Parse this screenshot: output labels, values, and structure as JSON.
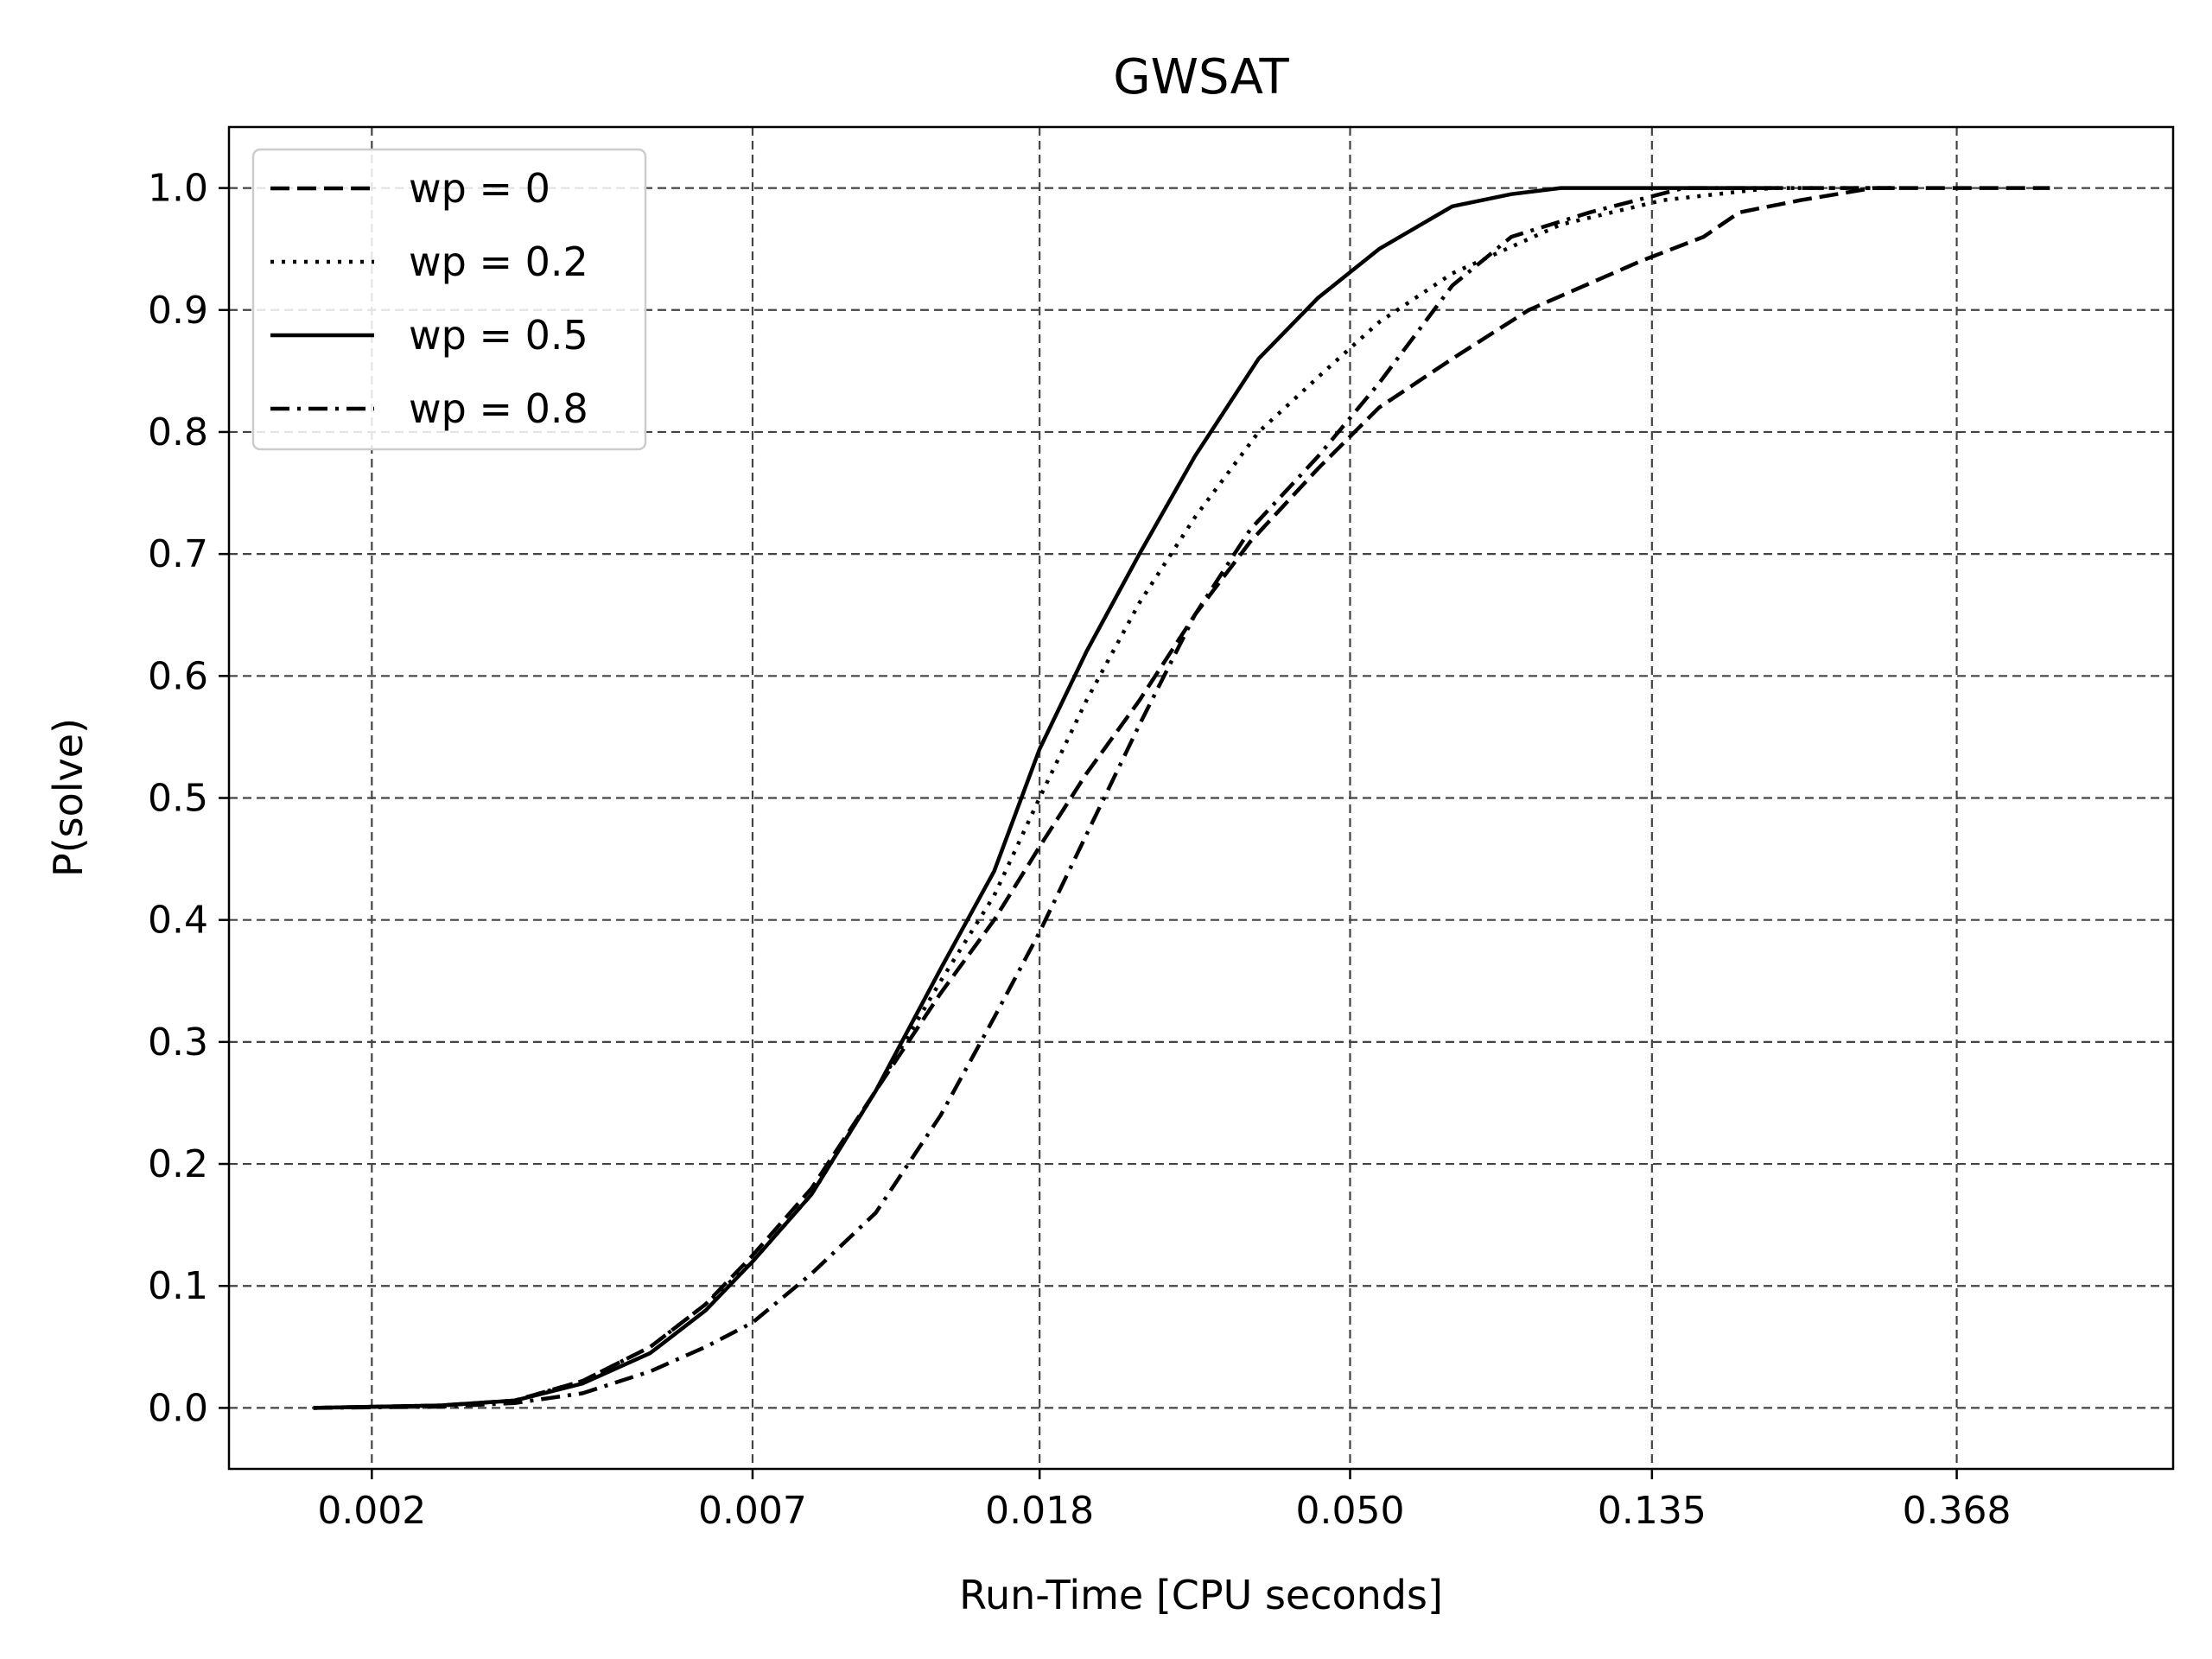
{
  "chart_data": {
    "type": "line",
    "title": "GWSAT",
    "xlabel": "Run-Time [CPU seconds]",
    "ylabel": "P(solve)",
    "x_scale": "log",
    "xlim": [
      0.00125,
      0.75
    ],
    "ylim": [
      -0.05,
      1.05
    ],
    "x_ticks": [
      0.002,
      0.007,
      0.018,
      0.05,
      0.135,
      0.368
    ],
    "x_tick_labels": [
      "0.002",
      "0.007",
      "0.018",
      "0.050",
      "0.135",
      "0.368"
    ],
    "y_ticks": [
      0.0,
      0.1,
      0.2,
      0.3,
      0.4,
      0.5,
      0.6,
      0.7,
      0.8,
      0.9,
      1.0
    ],
    "y_tick_labels": [
      "0.0",
      "0.1",
      "0.2",
      "0.3",
      "0.4",
      "0.5",
      "0.6",
      "0.7",
      "0.8",
      "0.9",
      "1.0"
    ],
    "grid": true,
    "legend_position": "top-left",
    "series": [
      {
        "name": "wp = 0",
        "style": "dashed",
        "color": "#000000",
        "points": [
          [
            0.00165,
            0.0
          ],
          [
            0.0025,
            0.002
          ],
          [
            0.0032,
            0.006
          ],
          [
            0.004,
            0.022
          ],
          [
            0.005,
            0.05
          ],
          [
            0.006,
            0.085
          ],
          [
            0.007,
            0.125
          ],
          [
            0.0085,
            0.18
          ],
          [
            0.0105,
            0.26
          ],
          [
            0.013,
            0.34
          ],
          [
            0.0155,
            0.4
          ],
          [
            0.018,
            0.46
          ],
          [
            0.021,
            0.52
          ],
          [
            0.025,
            0.58
          ],
          [
            0.03,
            0.65
          ],
          [
            0.036,
            0.71
          ],
          [
            0.045,
            0.77
          ],
          [
            0.055,
            0.82
          ],
          [
            0.07,
            0.86
          ],
          [
            0.09,
            0.9
          ],
          [
            0.13,
            0.94
          ],
          [
            0.16,
            0.96
          ],
          [
            0.18,
            0.98
          ],
          [
            0.22,
            0.99
          ],
          [
            0.28,
            1.0
          ],
          [
            0.5,
            1.0
          ]
        ]
      },
      {
        "name": "wp = 0.2",
        "style": "dotted",
        "color": "#000000",
        "points": [
          [
            0.00165,
            0.0
          ],
          [
            0.0025,
            0.002
          ],
          [
            0.0032,
            0.006
          ],
          [
            0.004,
            0.022
          ],
          [
            0.005,
            0.05
          ],
          [
            0.006,
            0.085
          ],
          [
            0.007,
            0.12
          ],
          [
            0.0085,
            0.175
          ],
          [
            0.0105,
            0.26
          ],
          [
            0.013,
            0.35
          ],
          [
            0.0155,
            0.42
          ],
          [
            0.018,
            0.5
          ],
          [
            0.021,
            0.58
          ],
          [
            0.025,
            0.66
          ],
          [
            0.03,
            0.73
          ],
          [
            0.037,
            0.8
          ],
          [
            0.046,
            0.85
          ],
          [
            0.055,
            0.89
          ],
          [
            0.07,
            0.93
          ],
          [
            0.1,
            0.97
          ],
          [
            0.14,
            0.99
          ],
          [
            0.2,
            1.0
          ],
          [
            0.3,
            1.0
          ]
        ]
      },
      {
        "name": "wp = 0.5",
        "style": "solid",
        "color": "#000000",
        "points": [
          [
            0.00165,
            0.0
          ],
          [
            0.0025,
            0.002
          ],
          [
            0.0032,
            0.006
          ],
          [
            0.004,
            0.02
          ],
          [
            0.005,
            0.045
          ],
          [
            0.006,
            0.08
          ],
          [
            0.007,
            0.12
          ],
          [
            0.0085,
            0.175
          ],
          [
            0.0105,
            0.26
          ],
          [
            0.013,
            0.36
          ],
          [
            0.0155,
            0.44
          ],
          [
            0.018,
            0.54
          ],
          [
            0.021,
            0.62
          ],
          [
            0.025,
            0.7
          ],
          [
            0.03,
            0.78
          ],
          [
            0.037,
            0.86
          ],
          [
            0.045,
            0.91
          ],
          [
            0.055,
            0.95
          ],
          [
            0.07,
            0.985
          ],
          [
            0.085,
            0.995
          ],
          [
            0.1,
            1.0
          ],
          [
            0.2,
            1.0
          ]
        ]
      },
      {
        "name": "wp = 0.8",
        "style": "dashdot",
        "color": "#000000",
        "points": [
          [
            0.00165,
            0.0
          ],
          [
            0.0025,
            0.001
          ],
          [
            0.0032,
            0.004
          ],
          [
            0.004,
            0.012
          ],
          [
            0.005,
            0.03
          ],
          [
            0.006,
            0.05
          ],
          [
            0.007,
            0.07
          ],
          [
            0.0085,
            0.11
          ],
          [
            0.0105,
            0.16
          ],
          [
            0.013,
            0.24
          ],
          [
            0.0155,
            0.32
          ],
          [
            0.018,
            0.39
          ],
          [
            0.021,
            0.47
          ],
          [
            0.025,
            0.56
          ],
          [
            0.03,
            0.65
          ],
          [
            0.036,
            0.72
          ],
          [
            0.045,
            0.78
          ],
          [
            0.055,
            0.84
          ],
          [
            0.07,
            0.92
          ],
          [
            0.085,
            0.96
          ],
          [
            0.11,
            0.98
          ],
          [
            0.15,
            1.0
          ],
          [
            0.3,
            1.0
          ]
        ]
      }
    ]
  }
}
